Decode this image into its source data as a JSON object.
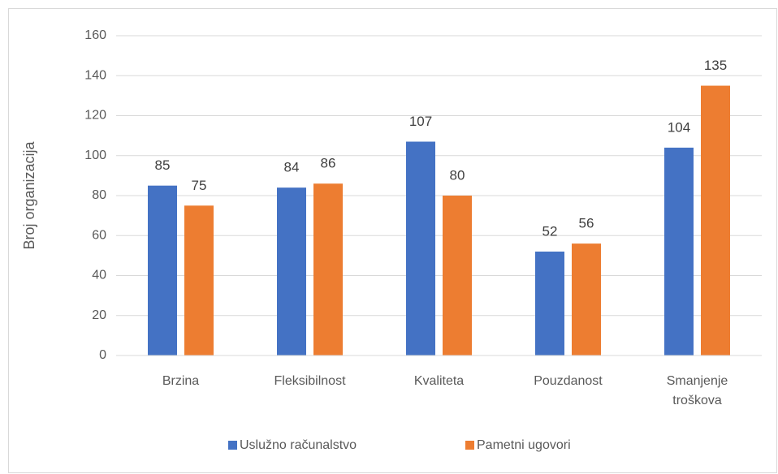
{
  "chart_data": {
    "type": "bar",
    "y_label": "Broj organizacija",
    "categories": [
      "Brzina",
      "Fleksibilnost",
      "Kvaliteta",
      "Pouzdanost",
      "Smanjenje troškova"
    ],
    "series": [
      {
        "name": "Uslužno računalstvo",
        "color": "#4472c4",
        "values": [
          85,
          84,
          107,
          52,
          104
        ]
      },
      {
        "name": "Pametni ugovori",
        "color": "#ed7d31",
        "values": [
          75,
          86,
          80,
          56,
          135
        ]
      }
    ],
    "ylim": [
      0,
      160
    ],
    "yticks": [
      0,
      20,
      40,
      60,
      80,
      100,
      120,
      140,
      160
    ],
    "grid": true,
    "legend": "bottom"
  }
}
